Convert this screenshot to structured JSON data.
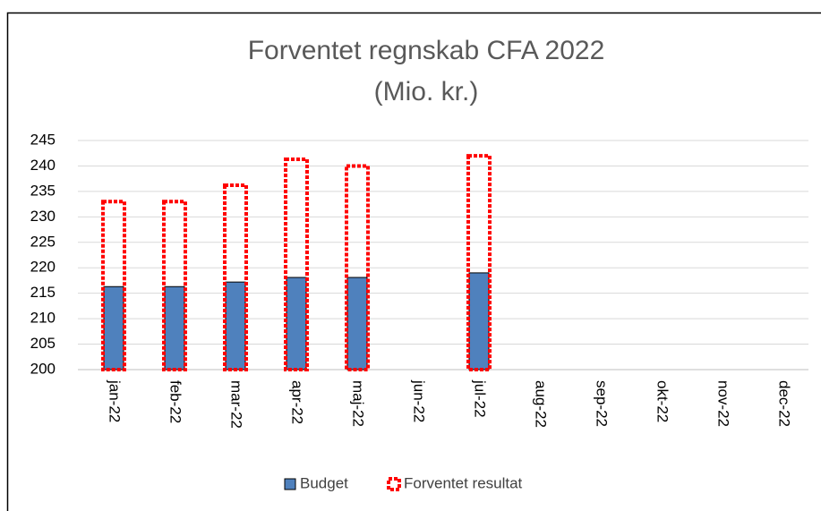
{
  "chart_data": {
    "type": "bar",
    "title": "Forventet regnskab CFA 2022",
    "subtitle": "(Mio. kr.)",
    "categories": [
      "jan-22",
      "feb-22",
      "mar-22",
      "apr-22",
      "maj-22",
      "jun-22",
      "jul-22",
      "aug-22",
      "sep-22",
      "okt-22",
      "nov-22",
      "dec-22"
    ],
    "series": [
      {
        "name": "Budget",
        "color": "#4f81bd",
        "values": [
          216.3,
          216.3,
          217.2,
          218.1,
          218.1,
          null,
          219,
          null,
          null,
          null,
          null,
          null
        ]
      },
      {
        "name": "Forventet resultat",
        "color": "#ff0000",
        "values": [
          233,
          233,
          236.2,
          241.3,
          240,
          null,
          242,
          null,
          null,
          null,
          null,
          null
        ]
      }
    ],
    "ylim": [
      200,
      245
    ],
    "yticks": [
      200,
      205,
      210,
      215,
      220,
      225,
      230,
      235,
      240,
      245
    ],
    "grid": true,
    "legend": "bottom"
  }
}
